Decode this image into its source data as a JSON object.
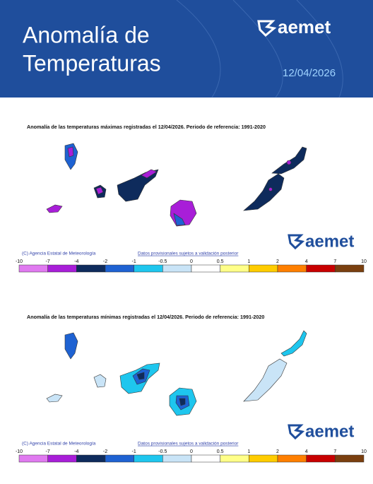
{
  "header": {
    "title_line1": "Anomalía de",
    "title_line2": "Temperaturas",
    "logo": "aemet",
    "date": "12/04/2026"
  },
  "maps": [
    {
      "title": "Anomalía de las temperaturas máximas registradas el 12/04/2026. Periodo de referencia: 1991-2020",
      "logo": "aemet",
      "credit": "(C) Agencia Estatal de Meteorología",
      "note": "Datos provisionales sujetos a validación posterior"
    },
    {
      "title": "Anomalía de las temperaturas mínimas registradas el 12/04/2026. Periodo de referencia: 1991-2020",
      "logo": "aemet",
      "credit": "(C) Agencia Estatal de Meteorología",
      "note": "Datos provisionales sujetos a validación posterior"
    }
  ],
  "scale": {
    "ticks": [
      -10,
      -7,
      -4,
      -2,
      -1,
      -0.5,
      0,
      0.5,
      1,
      2,
      4,
      7,
      10
    ],
    "colors": [
      "#e07af0",
      "#a81ed8",
      "#0e2b5c",
      "#1e62d2",
      "#1ec6ee",
      "#c9e4f7",
      "#ffffff",
      "#ffff88",
      "#ffcc00",
      "#ff7f00",
      "#c80000",
      "#7a3f0f"
    ]
  }
}
